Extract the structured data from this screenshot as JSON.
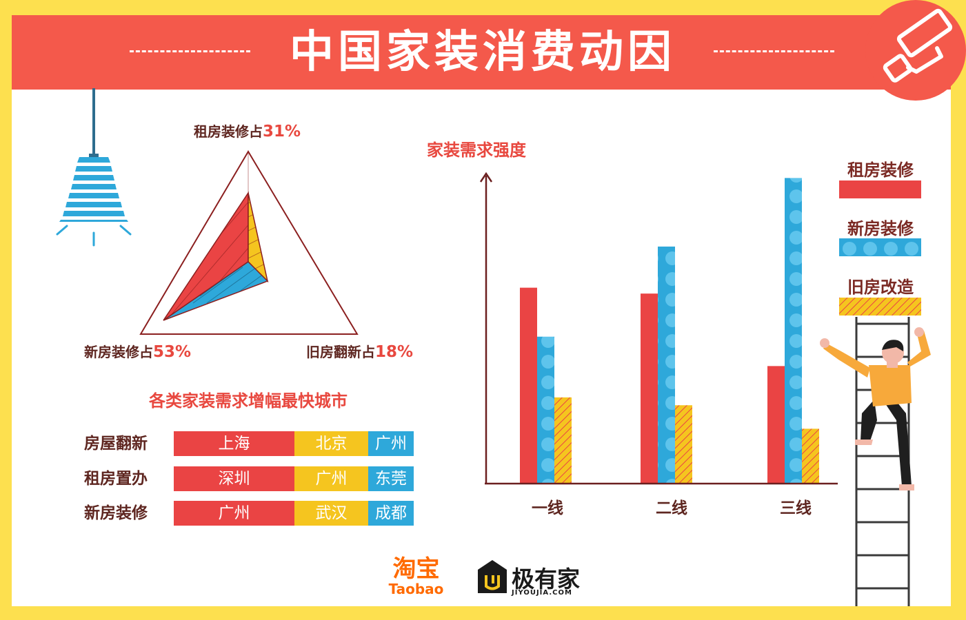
{
  "title": "中国家装消费动因",
  "colors": {
    "red": "#ea4444",
    "blue": "#2ea8da",
    "yellow": "#f5c51f",
    "banner": "#f4594b",
    "background": "#fde04f"
  },
  "triangle": {
    "top_label": "租房装修占",
    "top_pct": "31%",
    "left_label": "新房装修占",
    "left_pct": "53%",
    "right_label": "旧房翻新占",
    "right_pct": "18%"
  },
  "cities": {
    "title": "各类家装需求增幅最快城市",
    "rows": [
      {
        "label": "房屋翻新",
        "cities": [
          "上海",
          "北京",
          "广州"
        ]
      },
      {
        "label": "租房置办",
        "cities": [
          "深圳",
          "广州",
          "东莞"
        ]
      },
      {
        "label": "新房装修",
        "cities": [
          "广州",
          "武汉",
          "成都"
        ]
      }
    ]
  },
  "chart_data": {
    "type": "bar",
    "title": "家装需求强度",
    "categories": [
      "一线",
      "二线",
      "三线"
    ],
    "series": [
      {
        "name": "租房装修",
        "color": "#ea4444",
        "values": [
          1.0,
          0.97,
          0.6
        ]
      },
      {
        "name": "新房装修",
        "color": "#2ea8da",
        "values": [
          0.75,
          1.21,
          1.56
        ]
      },
      {
        "name": "旧房改造",
        "color": "#f5c51f",
        "values": [
          0.44,
          0.4,
          0.28
        ]
      }
    ],
    "ylim": [
      0,
      1.6
    ],
    "grid": false,
    "legend": "right"
  },
  "logos": {
    "taobao_cn": "淘宝",
    "taobao_en": "Taobao",
    "jiyoujia_name": "极有家",
    "jiyoujia_url": "JIYOUJIA.COM"
  },
  "icons": [
    "paint-roller-icon",
    "lamp-icon",
    "jiyoujia-logo-icon"
  ]
}
